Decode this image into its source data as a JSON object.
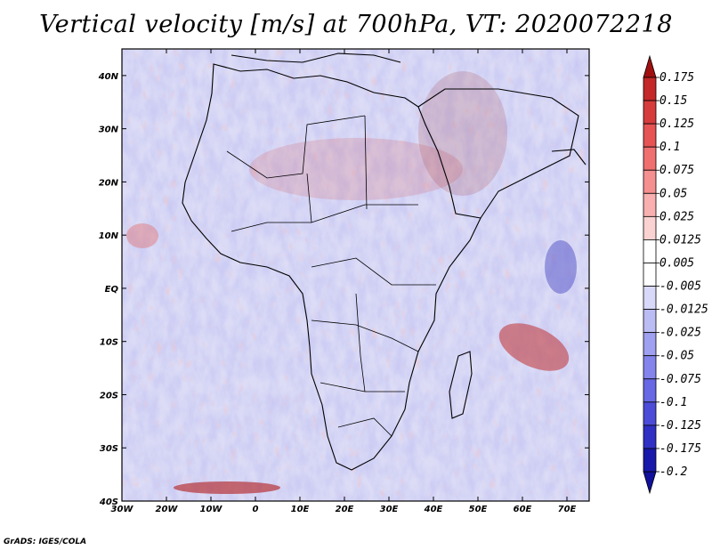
{
  "title": "Vertical velocity [m/s] at 700hPa, VT: 2020072218",
  "footer": "GrADS: IGES/COLA",
  "map": {
    "lon_labels": [
      "30W",
      "20W",
      "10W",
      "0",
      "10E",
      "20E",
      "30E",
      "40E",
      "50E",
      "60E",
      "70E"
    ],
    "lon_values": [
      -30,
      -20,
      -10,
      0,
      10,
      20,
      30,
      40,
      50,
      60,
      70
    ],
    "lat_labels": [
      "40N",
      "30N",
      "20N",
      "10N",
      "EQ",
      "10S",
      "20S",
      "30S",
      "40S"
    ],
    "lat_values": [
      40,
      30,
      20,
      10,
      0,
      -10,
      -20,
      -30,
      -40
    ],
    "lon_range": [
      -30,
      75
    ],
    "lat_range": [
      -40,
      45
    ]
  },
  "colorbar": {
    "labels": [
      "0.175",
      "0.15",
      "0.125",
      "0.1",
      "0.075",
      "0.05",
      "0.025",
      "0.0125",
      "0.005",
      "-0.005",
      "-0.0125",
      "-0.025",
      "-0.05",
      "-0.075",
      "-0.1",
      "-0.125",
      "-0.175",
      "-0.2"
    ],
    "colors": [
      "#b21818",
      "#c42828",
      "#d63c3c",
      "#e65454",
      "#f07070",
      "#f59090",
      "#f8b0b0",
      "#fbd2d2",
      "#ffffff",
      "#ffffff",
      "#d8d8f8",
      "#bcbcf4",
      "#a0a0f0",
      "#8484ec",
      "#6868e4",
      "#4c4cd8",
      "#3030c4",
      "#1818aa"
    ],
    "top_arrow_color": "#a01010",
    "bottom_arrow_color": "#10109a"
  }
}
